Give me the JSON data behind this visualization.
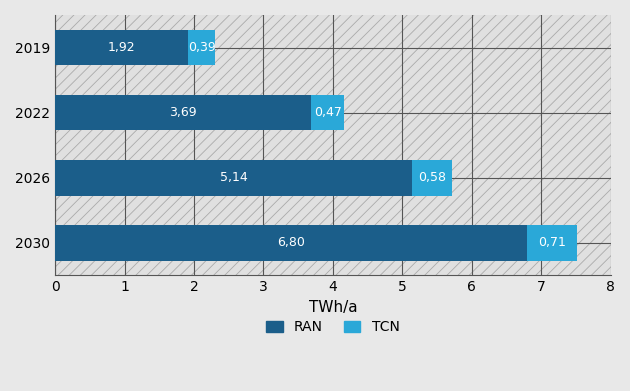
{
  "years": [
    "2019",
    "2022",
    "2026",
    "2030"
  ],
  "ran_values": [
    1.92,
    3.69,
    5.14,
    6.8
  ],
  "tcn_values": [
    0.39,
    0.47,
    0.58,
    0.71
  ],
  "ran_labels": [
    "1,92",
    "3,69",
    "5,14",
    "6,80"
  ],
  "tcn_labels": [
    "0,39",
    "0,47",
    "0,58",
    "0,71"
  ],
  "ran_color": "#1b5e8a",
  "tcn_color": "#2aa8d8",
  "xlabel": "TWh/a",
  "xlim": [
    0,
    8
  ],
  "xticks": [
    0,
    1,
    2,
    3,
    4,
    5,
    6,
    7,
    8
  ],
  "bar_height": 0.55,
  "plot_bg_color": "#dcdcdc",
  "fig_bg_color": "#e8e8e8",
  "legend_ran": "RAN",
  "legend_tcn": "TCN",
  "label_fontsize": 9,
  "tick_fontsize": 10,
  "xlabel_fontsize": 11,
  "grid_color": "#888888",
  "hatch_pattern": "///"
}
